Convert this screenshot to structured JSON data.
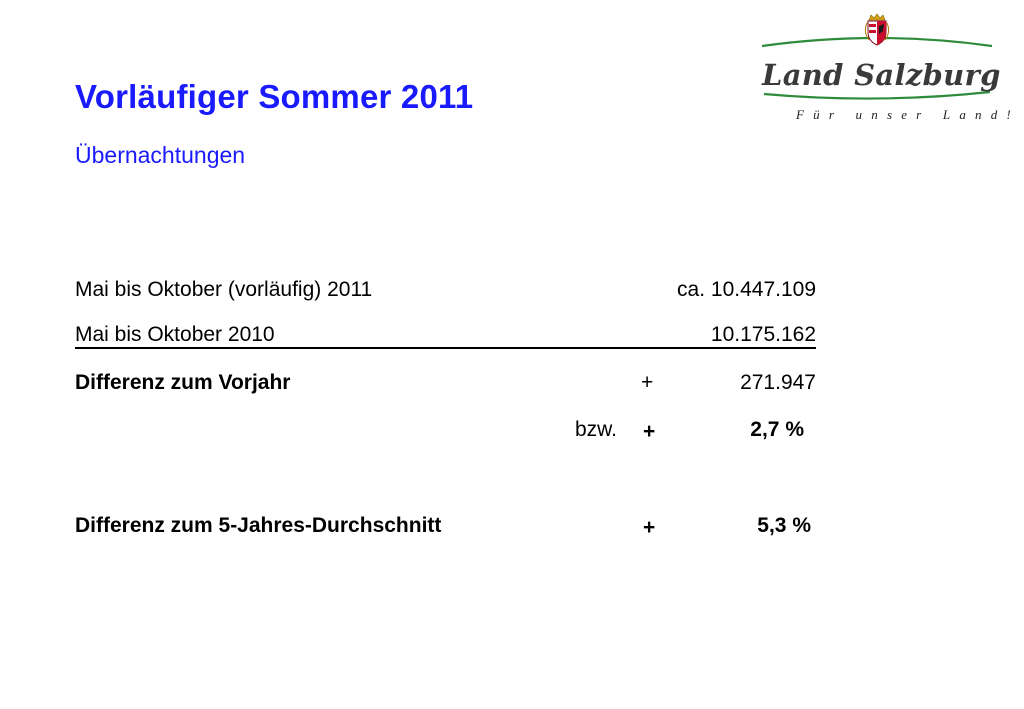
{
  "header": {
    "title": "Vorläufiger Sommer 2011",
    "subtitle": "Übernachtungen"
  },
  "logo": {
    "name": "Land Salzburg",
    "tagline": "Für unser Land!",
    "icon": "coat-of-arms-icon"
  },
  "rows": {
    "row1": {
      "label": "Mai bis Oktober (vorläufig) 2011",
      "value": "ca. 10.447.109"
    },
    "row2": {
      "label": "Mai bis Oktober 2010",
      "value": "10.175.162"
    },
    "row3": {
      "label": "Differenz zum Vorjahr",
      "sign": "+",
      "value": "271.947"
    },
    "row4": {
      "prefix": "bzw.",
      "sign": "+",
      "value": "2,7 %"
    },
    "row5": {
      "label": "Differenz zum 5-Jahres-Durchschnitt",
      "sign": "+",
      "value": "5,3 %"
    }
  },
  "colors": {
    "title": "#1a1aff",
    "logo_line": "#2e8b3a",
    "logo_text": "#3a3a3a",
    "crest_red": "#c8102e",
    "crest_gold": "#d4a017"
  }
}
